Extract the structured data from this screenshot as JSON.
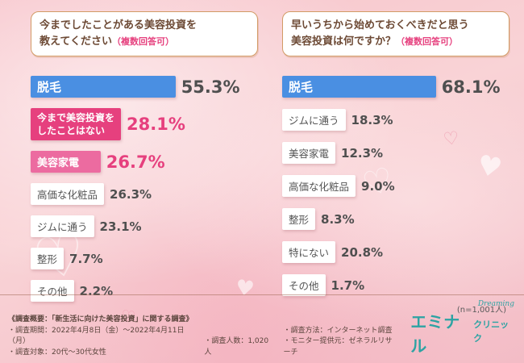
{
  "colors": {
    "background_pink": "#f8cdd3",
    "bar_blue": "#4a8fe2",
    "bar_deep_pink": "#e6407e",
    "bar_pink": "#ec6ba0",
    "bar_white": "#ffffff",
    "value_pink": "#e6407e",
    "text_dark": "#4f4f4f",
    "header_text": "#6d4a35",
    "header_border": "#d29b66",
    "logo_teal": "#2da3a3",
    "footer_text": "#5a443c"
  },
  "chart_data": [
    {
      "type": "bar",
      "orientation": "horizontal",
      "title": "今までしたことがある美容投資を教えてください（複数回答可）",
      "unit": "%",
      "categories": [
        "脱毛",
        "今まで美容投資をしたことはない",
        "美容家電",
        "高価な化粧品",
        "ジムに通う",
        "整形",
        "その他"
      ],
      "values": [
        55.3,
        28.1,
        26.7,
        26.3,
        23.1,
        7.7,
        2.2
      ],
      "xlim": [
        0,
        100
      ],
      "grid": false,
      "legend": "none"
    },
    {
      "type": "bar",
      "orientation": "horizontal",
      "title": "早いうちから始めておくべきだと思う美容投資は何ですか？（複数回答可）",
      "unit": "%",
      "categories": [
        "脱毛",
        "ジムに通う",
        "美容家電",
        "高価な化粧品",
        "整形",
        "特にない",
        "その他"
      ],
      "values": [
        68.1,
        18.3,
        12.3,
        9.0,
        8.3,
        20.8,
        1.7
      ],
      "xlim": [
        0,
        100
      ],
      "grid": false,
      "legend": "none",
      "annotation": "(n=1,001人)"
    }
  ],
  "panels": [
    {
      "header": {
        "line1": "今までしたことがある美容投資を",
        "line2": "教えてください",
        "note": "（複数回答可）"
      },
      "rows": [
        {
          "label": "脱毛",
          "value_text": "55.3%"
        },
        {
          "label": "今まで美容投資を",
          "label2": "したことはない",
          "value_text": "28.1%"
        },
        {
          "label": "美容家電",
          "value_text": "26.7%"
        },
        {
          "label": "高価な化粧品",
          "value_text": "26.3%"
        },
        {
          "label": "ジムに通う",
          "value_text": "23.1%"
        },
        {
          "label": "整形",
          "value_text": "7.7%"
        },
        {
          "label": "その他",
          "value_text": "2.2%"
        }
      ]
    },
    {
      "header": {
        "line1": "早いうちから始めておくべきだと思う",
        "line2": "美容投資は何ですか？",
        "note": "（複数回答可）"
      },
      "rows": [
        {
          "label": "脱毛",
          "value_text": "68.1%"
        },
        {
          "label": "ジムに通う",
          "value_text": "18.3%"
        },
        {
          "label": "美容家電",
          "value_text": "12.3%"
        },
        {
          "label": "高価な化粧品",
          "value_text": "9.0%"
        },
        {
          "label": "整形",
          "value_text": "8.3%"
        },
        {
          "label": "特にない",
          "value_text": "20.8%"
        },
        {
          "label": "その他",
          "value_text": "1.7%"
        }
      ],
      "sample_note": "(n=1,001人)"
    }
  ],
  "footer": {
    "summary": "《調査概要：「新生活に向けた美容投資」に関する調査》",
    "period": "・調査期間：2022年4月8日（金）〜2022年4月11日（月）",
    "target": "・調査対象：20代〜30代女性",
    "count": "・調査人数：1,020人",
    "method": "・調査方法：インターネット調査",
    "monitor": "・モニター提供元：ゼネラルリサーチ"
  },
  "logo": {
    "tagline": "Dreaming",
    "name_main": "エミナル",
    "name_sub": "クリニック"
  },
  "decor": {
    "heart_filled": "♥",
    "heart_outline": "♡"
  }
}
